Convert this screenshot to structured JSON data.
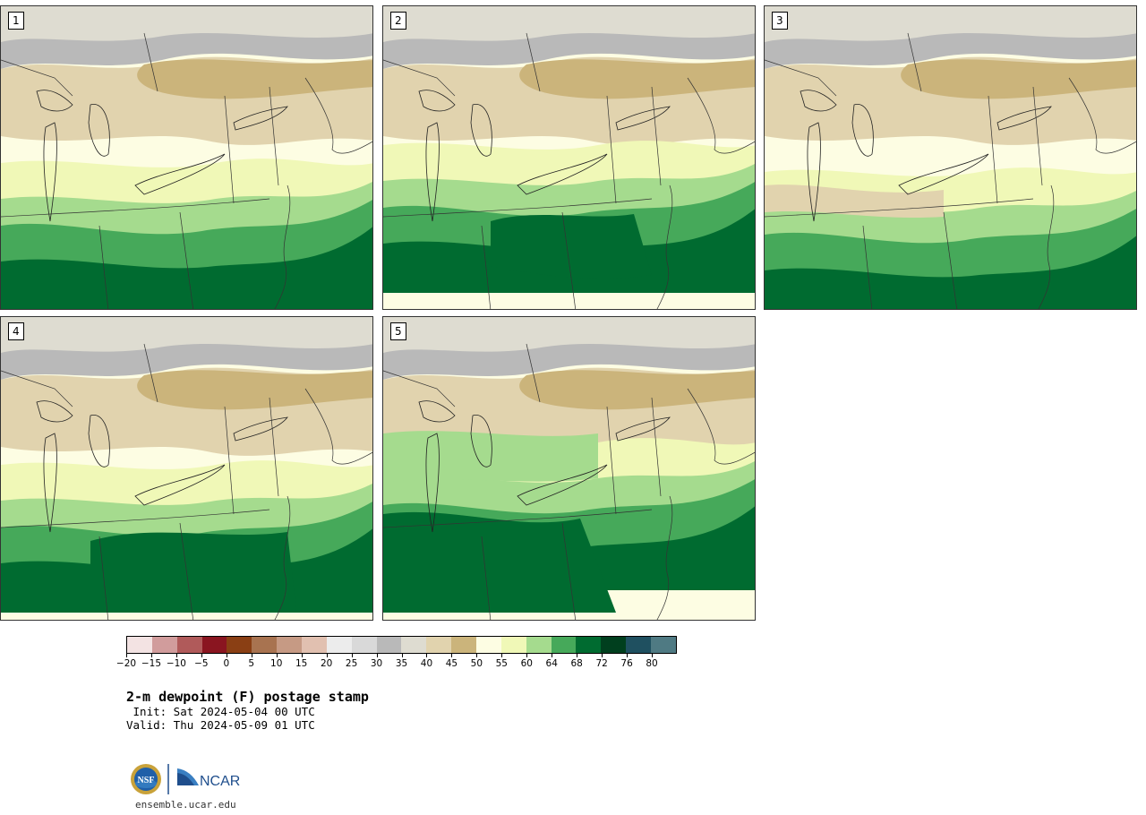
{
  "panels": [
    {
      "number": "1"
    },
    {
      "number": "2"
    },
    {
      "number": "3"
    },
    {
      "number": "4"
    },
    {
      "number": "5"
    }
  ],
  "colorbar": {
    "colors": [
      "#f3e3e3",
      "#d19c9c",
      "#b05a5a",
      "#8a1520",
      "#8a3f14",
      "#a87350",
      "#c69a84",
      "#e1c0b0",
      "#ececec",
      "#d9d9d9",
      "#b9b9b9",
      "#dedcd1",
      "#e1d3ae",
      "#cbb47b",
      "#fdfde3",
      "#f0f8b7",
      "#a5db8e",
      "#46a95a",
      "#006b30",
      "#003f1e",
      "#1f5060",
      "#4f7a83"
    ],
    "tick_labels": [
      "−20",
      "−15",
      "−10",
      "−5",
      "0",
      "5",
      "10",
      "15",
      "20",
      "25",
      "30",
      "35",
      "40",
      "45",
      "50",
      "55",
      "60",
      "64",
      "68",
      "72",
      "76",
      "80"
    ]
  },
  "title": "2-m dewpoint (F) postage stamp",
  "init": " Init: Sat 2024-05-04 00 UTC",
  "valid": "Valid: Thu 2024-05-09 01 UTC",
  "logos": {
    "nsf": "NSF",
    "ncar": "NCAR"
  },
  "site": "ensemble.ucar.edu"
}
